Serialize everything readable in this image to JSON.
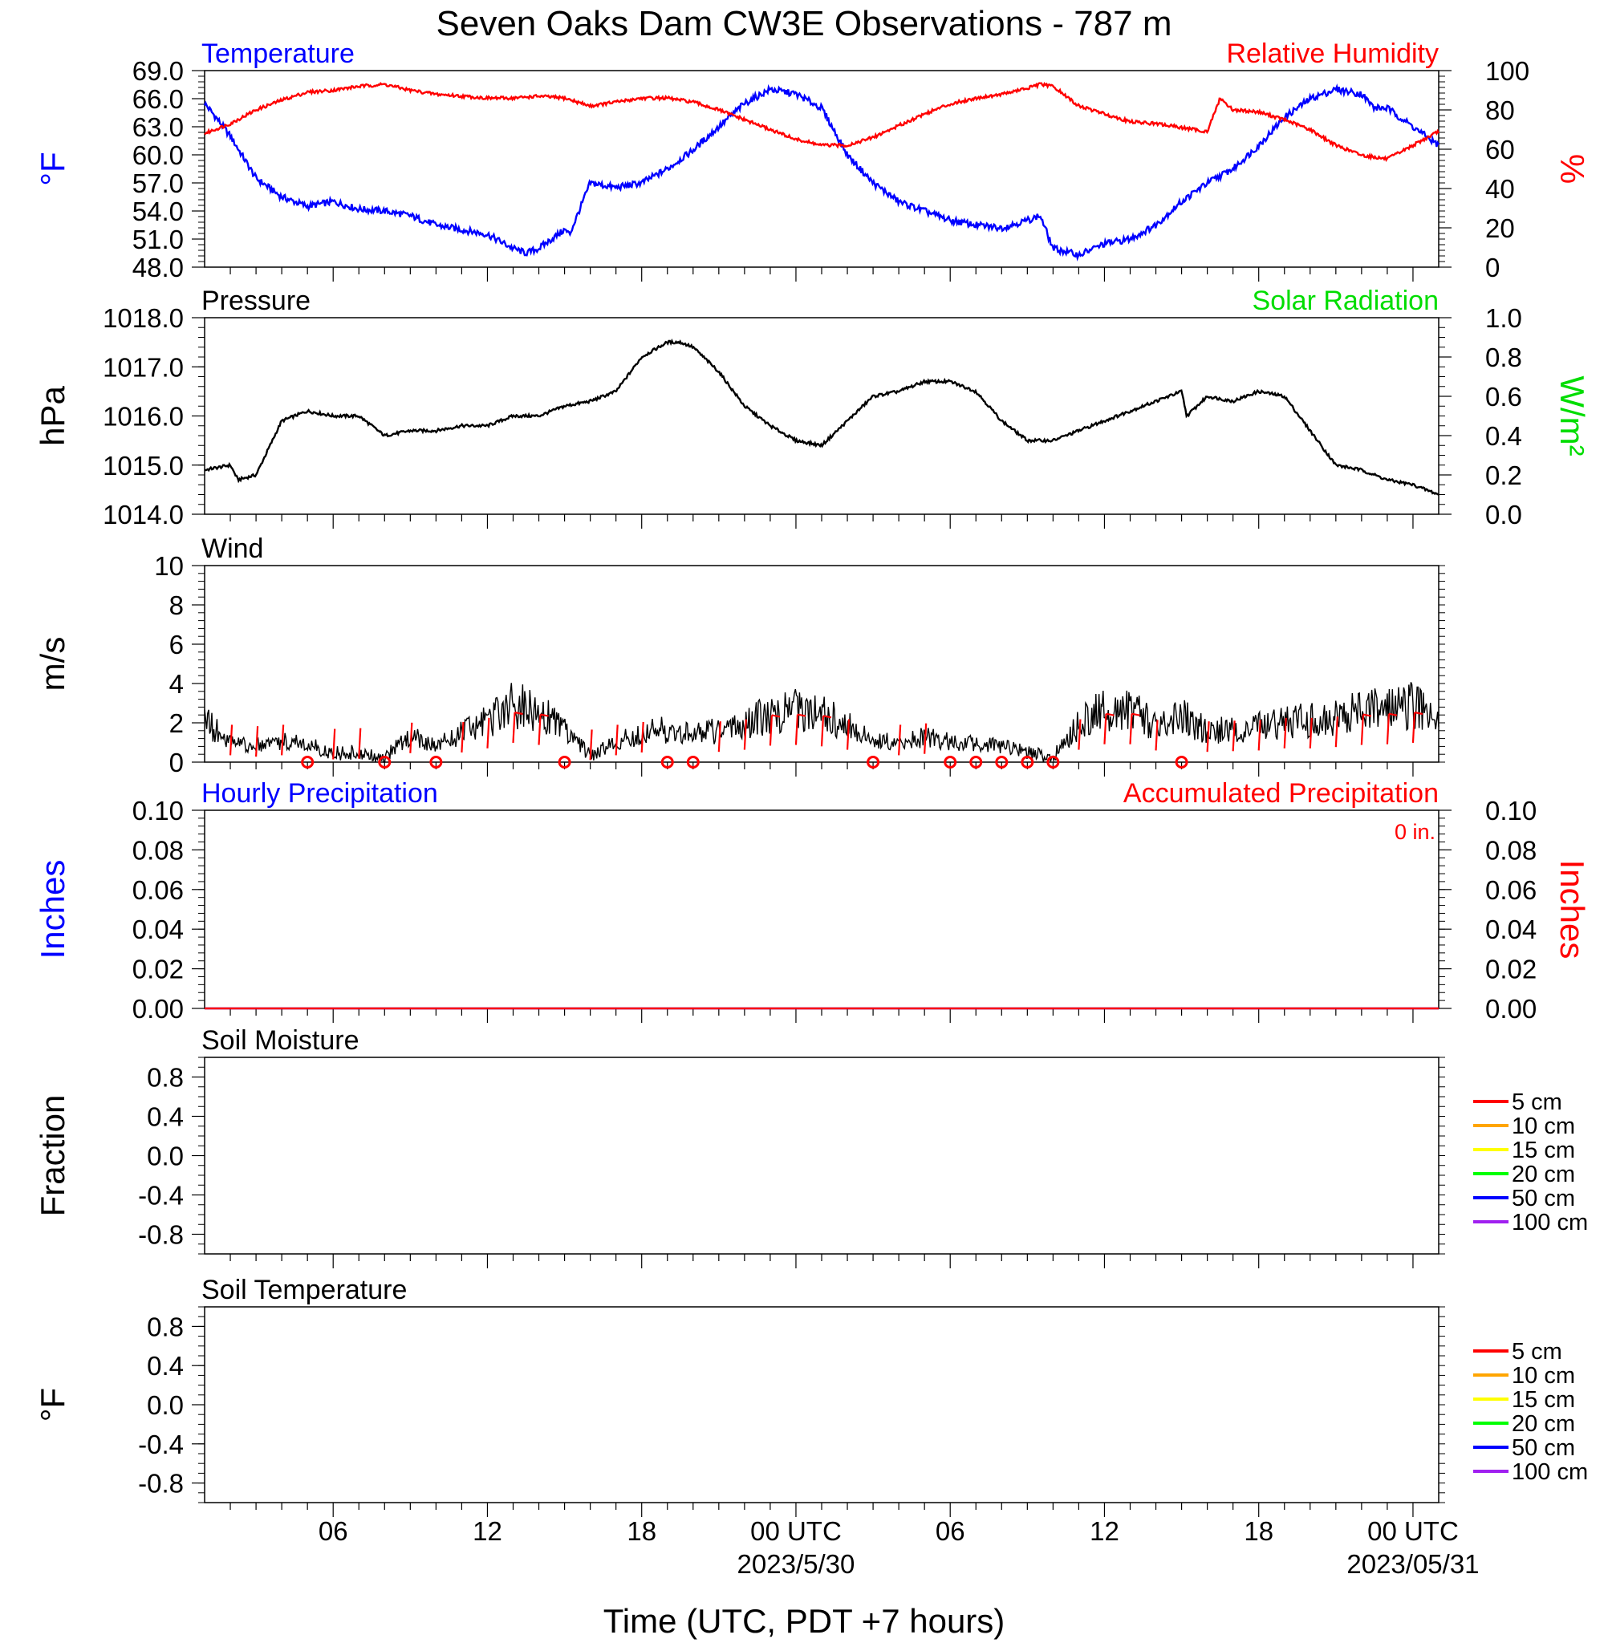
{
  "title": "Seven Oaks Dam CW3E Observations - 787 m",
  "xlabel": "Time (UTC, PDT +7 hours)",
  "x_axis": {
    "range_hours": [
      0,
      48
    ],
    "tick_labels": [
      {
        "hour": 5,
        "text": "06"
      },
      {
        "hour": 11,
        "text": "12"
      },
      {
        "hour": 17,
        "text": "18"
      },
      {
        "hour": 23,
        "text": "00 UTC",
        "sub": "2023/5/30"
      },
      {
        "hour": 29,
        "text": "06"
      },
      {
        "hour": 35,
        "text": "12"
      },
      {
        "hour": 41,
        "text": "18"
      },
      {
        "hour": 47,
        "text": "00 UTC",
        "sub": "2023/05/31"
      }
    ]
  },
  "colors": {
    "temperature": "#0000ff",
    "humidity": "#ff0000",
    "pressure": "#000000",
    "solar": "#00dd00",
    "wind": "#000000",
    "barb": "#ff0000",
    "hourly_precip": "#0000ff",
    "accum_precip": "#ff0000",
    "soil": [
      "#ff0000",
      "#ffa500",
      "#ffff00",
      "#00ff00",
      "#0000ff",
      "#a020f0"
    ]
  },
  "chart_data": [
    {
      "id": "temp_rh",
      "type": "line",
      "left_title": "Temperature",
      "right_title": "Relative Humidity",
      "ylabel_left": "°F",
      "ylabel_right": "%",
      "ylim_left": [
        48,
        69
      ],
      "ylim_right": [
        0,
        100
      ],
      "yticks_left": [
        "48.0",
        "51.0",
        "54.0",
        "57.0",
        "60.0",
        "63.0",
        "66.0",
        "69.0"
      ],
      "yticks_right": [
        "0",
        "20",
        "40",
        "60",
        "80",
        "100"
      ],
      "series": [
        {
          "name": "Temperature",
          "axis": "left",
          "x": [
            0,
            0.5,
            1,
            2,
            3,
            4,
            5,
            6,
            7,
            8,
            9,
            10,
            11,
            12,
            12.5,
            13,
            14,
            14.2,
            15,
            16,
            17,
            18,
            19,
            20,
            21,
            22,
            23,
            24,
            25,
            26,
            27,
            28,
            29,
            30,
            31,
            32,
            32.5,
            33,
            34,
            35,
            36,
            37,
            38,
            39,
            40,
            41,
            42,
            43,
            44,
            45,
            45.5,
            46,
            47,
            48
          ],
          "y": [
            65.5,
            63.8,
            62.0,
            57.5,
            55.5,
            54.5,
            55.0,
            54.2,
            54.0,
            53.5,
            52.5,
            52.0,
            51.5,
            50.0,
            49.5,
            50.0,
            52.0,
            51.5,
            57.0,
            56.5,
            57.0,
            58.5,
            60.5,
            63.0,
            65.5,
            67.0,
            66.5,
            65.0,
            60.0,
            57.0,
            55.0,
            54.0,
            53.0,
            52.5,
            52.2,
            53.0,
            53.5,
            50.0,
            49.3,
            50.5,
            51.0,
            52.5,
            55.0,
            57.0,
            58.5,
            61.0,
            64.0,
            66.0,
            67.0,
            66.5,
            65.0,
            65.0,
            63.0,
            61.0
          ]
        },
        {
          "name": "Relative Humidity",
          "axis": "right",
          "x": [
            0,
            1,
            2,
            3,
            4,
            5,
            6,
            7,
            8,
            9,
            10,
            11,
            12,
            13,
            14,
            15,
            16,
            17,
            18,
            19,
            20,
            21,
            22,
            23,
            24,
            25,
            26,
            27,
            28,
            29,
            30,
            31,
            32,
            32.5,
            33,
            34,
            35,
            36,
            37,
            38,
            39,
            39.5,
            40,
            41,
            42,
            43,
            44,
            45,
            46,
            47,
            48
          ],
          "y": [
            68,
            73,
            80,
            85,
            89,
            90,
            92,
            93,
            90,
            88,
            87,
            86,
            86,
            87,
            86,
            82,
            84,
            86,
            86,
            84,
            80,
            75,
            70,
            65,
            62,
            62,
            66,
            72,
            78,
            83,
            86,
            88,
            91,
            93,
            92,
            82,
            78,
            74,
            73,
            71,
            69,
            86,
            80,
            79,
            75,
            70,
            62,
            57,
            55,
            62,
            69
          ]
        }
      ]
    },
    {
      "id": "pressure_solar",
      "type": "line",
      "left_title": "Pressure",
      "right_title": "Solar Radiation",
      "ylabel_left": "hPa",
      "ylabel_right": "W/m²",
      "ylim_left": [
        1014,
        1018
      ],
      "ylim_right": [
        0,
        1
      ],
      "yticks_left": [
        "1014.0",
        "1015.0",
        "1016.0",
        "1017.0",
        "1018.0"
      ],
      "yticks_right": [
        "0.0",
        "0.2",
        "0.4",
        "0.6",
        "0.8",
        "1.0"
      ],
      "series": [
        {
          "name": "Pressure",
          "axis": "left",
          "x": [
            0,
            1,
            1.3,
            2,
            3,
            4,
            5,
            6,
            7,
            8,
            9,
            10,
            11,
            12,
            13,
            14,
            15,
            16,
            17,
            18,
            18.5,
            19,
            20,
            21,
            22,
            23,
            24,
            25,
            26,
            27,
            28,
            29,
            30,
            31,
            32,
            33,
            34,
            35,
            36,
            37,
            38,
            38.2,
            39,
            40,
            41,
            42,
            43,
            44,
            45,
            46,
            47,
            48
          ],
          "y": [
            1014.9,
            1015.0,
            1014.7,
            1014.8,
            1015.9,
            1016.1,
            1016.0,
            1016.0,
            1015.6,
            1015.7,
            1015.7,
            1015.8,
            1015.8,
            1016.0,
            1016.0,
            1016.2,
            1016.3,
            1016.5,
            1017.2,
            1017.5,
            1017.5,
            1017.4,
            1016.9,
            1016.2,
            1015.8,
            1015.5,
            1015.4,
            1015.9,
            1016.4,
            1016.5,
            1016.7,
            1016.7,
            1016.5,
            1015.9,
            1015.5,
            1015.5,
            1015.7,
            1015.9,
            1016.1,
            1016.3,
            1016.5,
            1016.0,
            1016.4,
            1016.3,
            1016.5,
            1016.4,
            1015.7,
            1015.0,
            1014.9,
            1014.7,
            1014.6,
            1014.4
          ]
        }
      ]
    },
    {
      "id": "wind",
      "type": "line",
      "left_title": "Wind",
      "ylabel_left": "m/s",
      "ylim_left": [
        0,
        10
      ],
      "yticks_left": [
        "0",
        "2",
        "4",
        "6",
        "8",
        "10"
      ],
      "series": [
        {
          "name": "Wind",
          "axis": "left",
          "x": [
            0,
            1,
            2,
            3,
            4,
            5,
            6,
            7,
            8,
            9,
            10,
            11,
            12,
            13,
            14,
            15,
            16,
            17,
            18,
            19,
            20,
            21,
            22,
            23,
            24,
            25,
            26,
            27,
            28,
            29,
            30,
            31,
            32,
            33,
            34,
            35,
            36,
            37,
            38,
            39,
            40,
            41,
            42,
            43,
            44,
            45,
            46,
            47,
            48
          ],
          "y": [
            2.0,
            1.0,
            0.8,
            1.0,
            0.9,
            0.4,
            0.5,
            0.2,
            1.3,
            0.8,
            1.4,
            2.0,
            2.8,
            2.5,
            1.6,
            0.3,
            1.0,
            1.4,
            1.6,
            1.4,
            1.5,
            1.8,
            2.4,
            2.5,
            2.3,
            1.8,
            1.0,
            1.0,
            1.2,
            1.0,
            0.9,
            0.8,
            0.5,
            0.2,
            1.8,
            2.6,
            2.6,
            1.7,
            2.2,
            1.5,
            1.6,
            1.7,
            2.0,
            2.0,
            2.2,
            2.5,
            2.6,
            2.8,
            2.2
          ]
        }
      ],
      "calm_hours": [
        4,
        7,
        9,
        14,
        18,
        19,
        26,
        29,
        30,
        31,
        32,
        33,
        38
      ]
    },
    {
      "id": "precip",
      "type": "line",
      "left_title": "Hourly Precipitation",
      "right_title": "Accumulated Precipitation",
      "annotation": "0 in.",
      "ylabel_left": "Inches",
      "ylabel_right": "Inches",
      "ylim_left": [
        0,
        0.1
      ],
      "ylim_right": [
        0,
        0.1
      ],
      "yticks_left": [
        "0.00",
        "0.02",
        "0.04",
        "0.06",
        "0.08",
        "0.10"
      ],
      "yticks_right": [
        "0.00",
        "0.02",
        "0.04",
        "0.06",
        "0.08",
        "0.10"
      ],
      "series": [
        {
          "name": "Hourly Precipitation",
          "axis": "left",
          "x": [
            0,
            48
          ],
          "y": [
            0,
            0
          ]
        },
        {
          "name": "Accumulated Precipitation",
          "axis": "right",
          "x": [
            0,
            48
          ],
          "y": [
            0,
            0
          ]
        }
      ]
    },
    {
      "id": "soil_moisture",
      "type": "line",
      "left_title": "Soil Moisture",
      "ylabel_left": "Fraction",
      "ylim_left": [
        -1,
        1
      ],
      "yticks_left": [
        "-0.8",
        "-0.4",
        "0.0",
        "0.4",
        "0.8"
      ],
      "legend": [
        "5 cm",
        "10 cm",
        "15 cm",
        "20 cm",
        "50 cm",
        "100 cm"
      ],
      "series": []
    },
    {
      "id": "soil_temperature",
      "type": "line",
      "left_title": "Soil Temperature",
      "ylabel_left": "°F",
      "ylim_left": [
        -1,
        1
      ],
      "yticks_left": [
        "-0.8",
        "-0.4",
        "0.0",
        "0.4",
        "0.8"
      ],
      "legend": [
        "5 cm",
        "10 cm",
        "15 cm",
        "20 cm",
        "50 cm",
        "100 cm"
      ],
      "series": []
    }
  ]
}
